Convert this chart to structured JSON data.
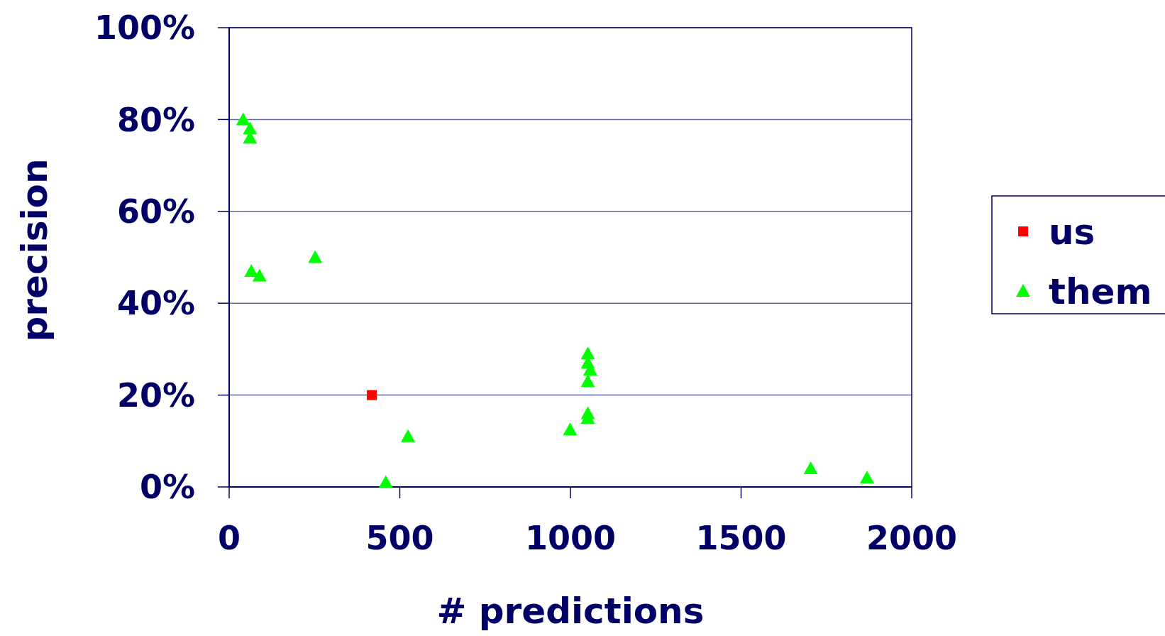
{
  "chart_data": {
    "type": "scatter",
    "xlabel": "# predictions",
    "ylabel": "precision",
    "xlim": [
      0,
      2000
    ],
    "xticks": [
      0,
      500,
      1000,
      1500,
      2000
    ],
    "ylim": [
      0,
      100
    ],
    "yticks": [
      {
        "value": 0,
        "label": "0%"
      },
      {
        "value": 20,
        "label": "20%"
      },
      {
        "value": 40,
        "label": "40%"
      },
      {
        "value": 60,
        "label": "60%"
      },
      {
        "value": 80,
        "label": "80%"
      },
      {
        "value": 100,
        "label": "100%"
      }
    ],
    "grid": "y",
    "legend": "right",
    "series": [
      {
        "name": "us",
        "color": "#ff0000",
        "marker": "square",
        "x": [
          418
        ],
        "values": [
          20
        ]
      },
      {
        "name": "them",
        "color": "#00ff00",
        "marker": "triangle",
        "x": [
          41,
          61,
          61,
          65,
          89,
          252,
          524,
          459,
          999,
          1051,
          1051,
          1058,
          1051,
          1051,
          1051,
          1704,
          1869
        ],
        "values": [
          80,
          78,
          76,
          47,
          46,
          50,
          11,
          1,
          12.5,
          29,
          27,
          25.5,
          23,
          16,
          15,
          4,
          2
        ]
      }
    ]
  }
}
